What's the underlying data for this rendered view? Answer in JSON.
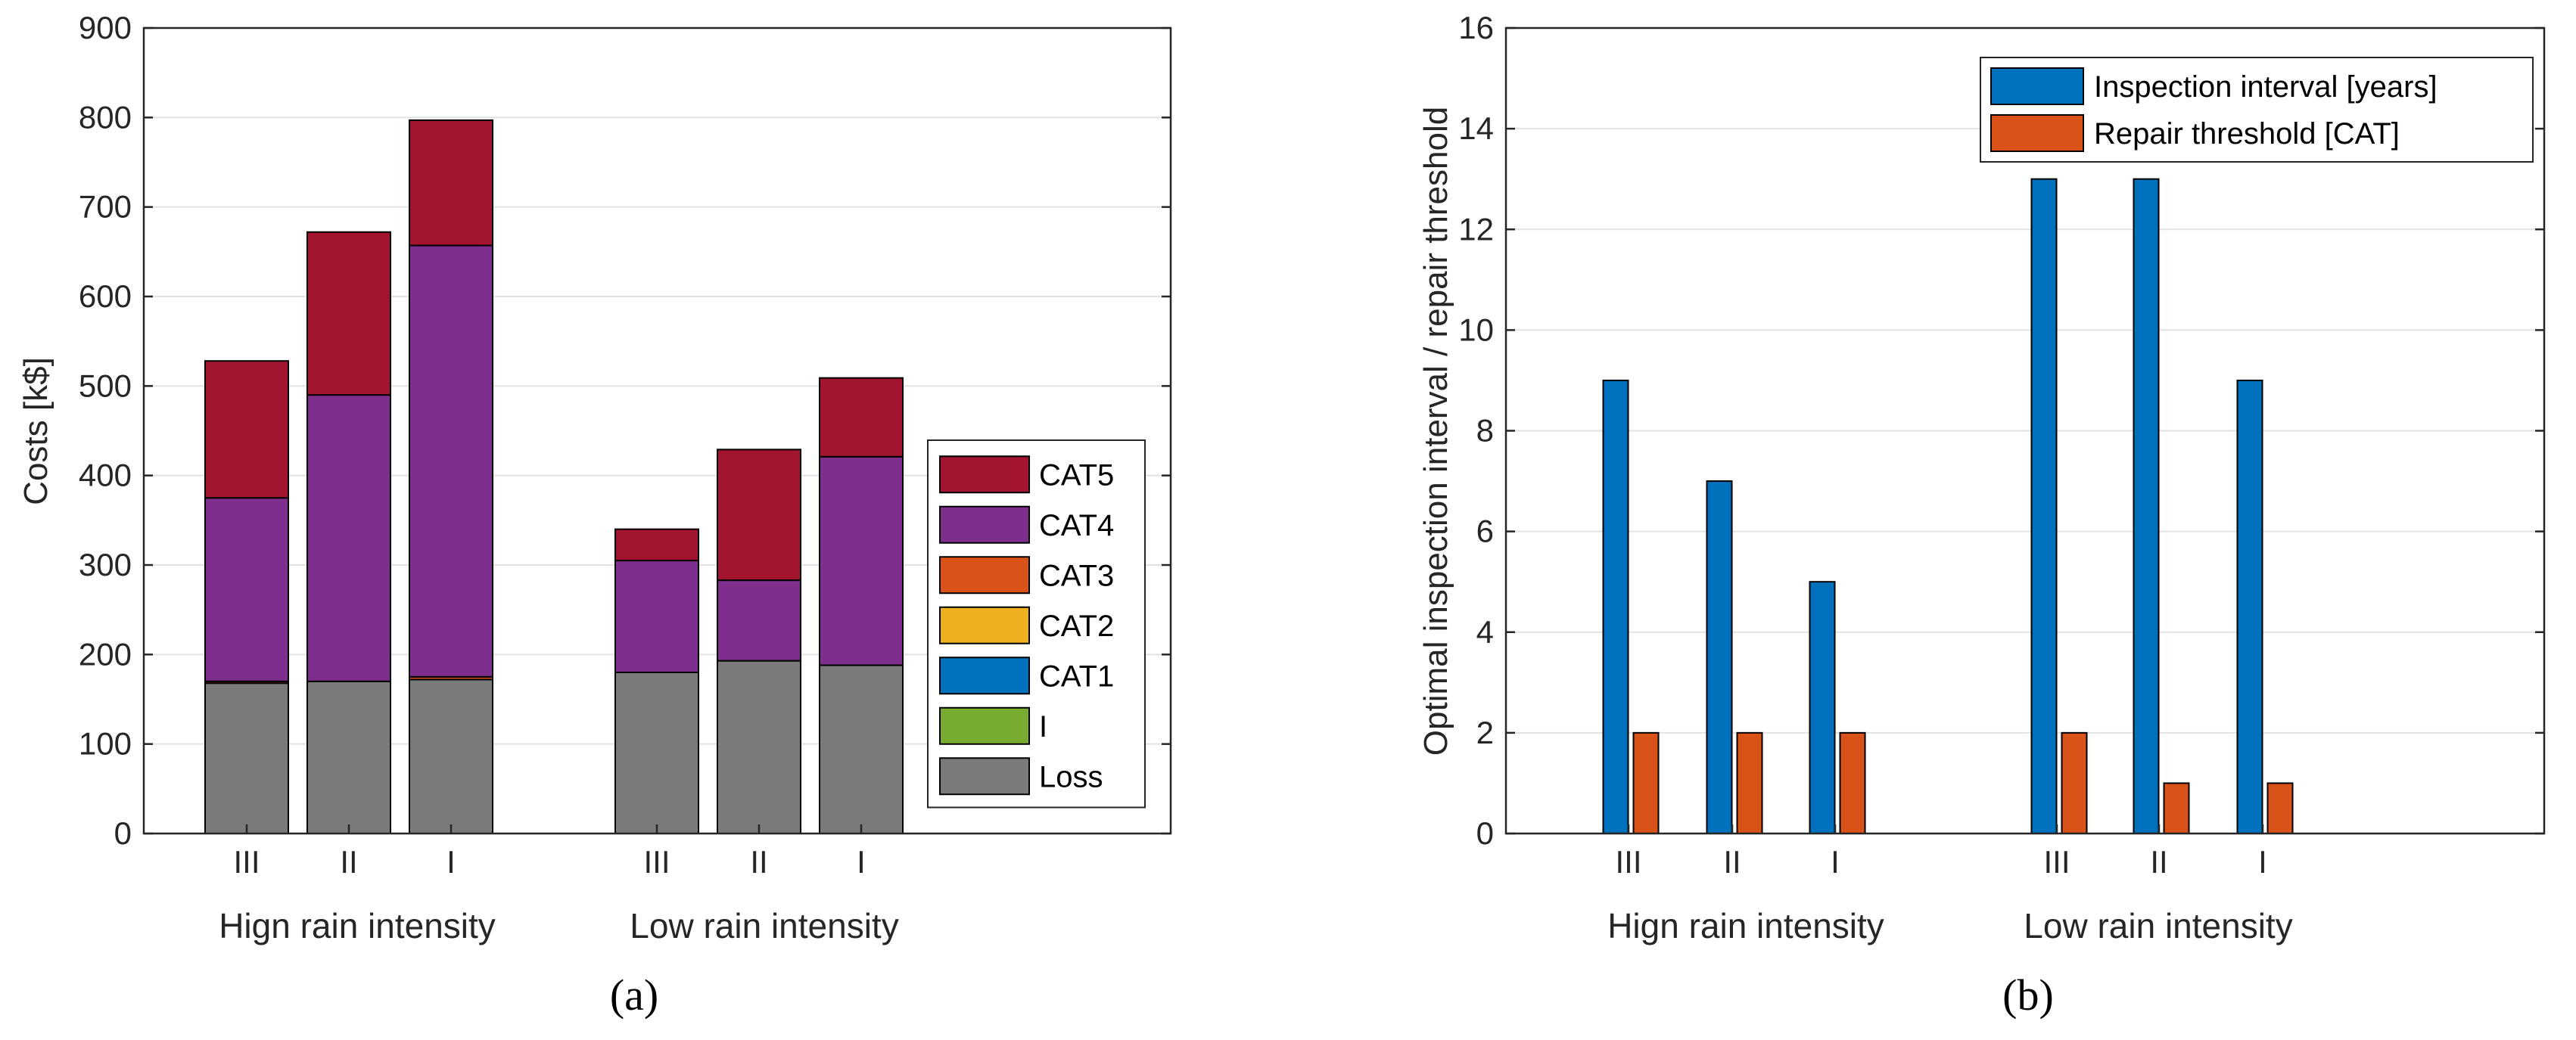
{
  "chart_data": [
    {
      "type": "bar",
      "stacked": true,
      "panel_label": "(a)",
      "ylabel": "Costs [k$]",
      "ylim": [
        0,
        900
      ],
      "yticks": [
        0,
        100,
        200,
        300,
        400,
        500,
        600,
        700,
        800,
        900
      ],
      "grid": "horizontal",
      "legend_position": "right, lower",
      "categories": [
        "III",
        "II",
        "I",
        "III",
        "II",
        "I"
      ],
      "groups": [
        "Hign rain intensity",
        "Low rain intensity"
      ],
      "series": [
        {
          "name": "Loss",
          "color": "#7a7a7a",
          "values": [
            168,
            170,
            172,
            180,
            193,
            188
          ]
        },
        {
          "name": "I",
          "color": "#77ac30",
          "values": [
            0,
            0,
            0,
            0,
            0,
            0
          ]
        },
        {
          "name": "CAT1",
          "color": "#0072bd",
          "values": [
            0,
            0,
            0,
            0,
            0,
            0
          ]
        },
        {
          "name": "CAT2",
          "color": "#edb120",
          "values": [
            0,
            0,
            0,
            0,
            0,
            0
          ]
        },
        {
          "name": "CAT3",
          "color": "#d95319",
          "values": [
            2,
            0,
            3,
            0,
            0,
            0
          ]
        },
        {
          "name": "CAT4",
          "color": "#7e2f8e",
          "values": [
            205,
            320,
            482,
            125,
            90,
            233
          ]
        },
        {
          "name": "CAT5",
          "color": "#a2142f",
          "values": [
            153,
            182,
            140,
            35,
            146,
            88
          ]
        }
      ]
    },
    {
      "type": "bar",
      "grouped": true,
      "panel_label": "(b)",
      "ylabel": "Optimal inspection interval / repair threshold",
      "ylim": [
        0,
        16
      ],
      "yticks": [
        0,
        2,
        4,
        6,
        8,
        10,
        12,
        14,
        16
      ],
      "grid": "horizontal",
      "legend_position": "top-right",
      "categories": [
        "III",
        "II",
        "I",
        "III",
        "II",
        "I"
      ],
      "groups": [
        "Hign rain intensity",
        "Low rain intensity"
      ],
      "series": [
        {
          "name": "Inspection interval [years]",
          "color": "#0072bd",
          "values": [
            9,
            7,
            5,
            13,
            13,
            9
          ]
        },
        {
          "name": "Repair threshold [CAT]",
          "color": "#d95319",
          "values": [
            2,
            2,
            2,
            2,
            1,
            1
          ]
        }
      ]
    }
  ]
}
